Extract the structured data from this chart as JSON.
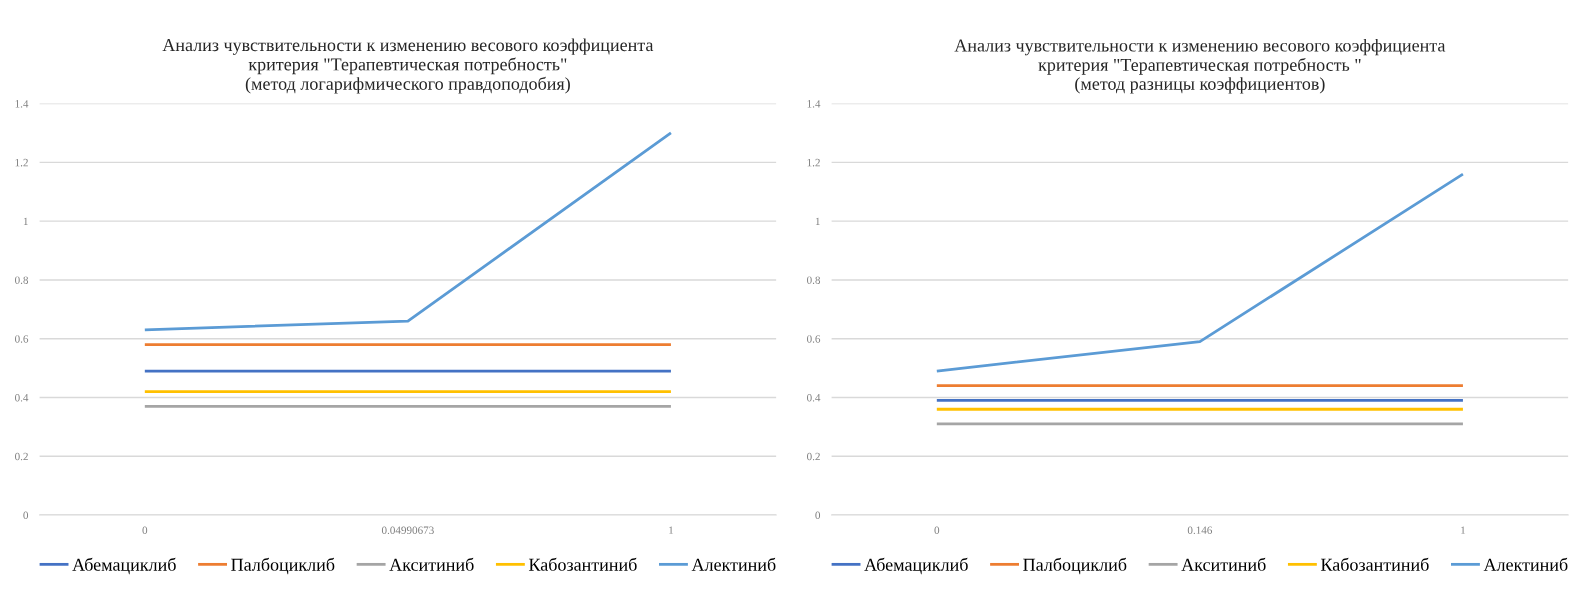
{
  "chart_data": [
    {
      "type": "line",
      "title": "Анализ чувствительности к изменению весового коэффициента\nкритерия \"Терапевтическая потребность\"\n(метод логарифмического правдоподобия)",
      "categories": [
        "0",
        "0.04990673",
        "1"
      ],
      "series": [
        {
          "name": "Абемациклиб",
          "color": "#4472c4",
          "values": [
            0.49,
            0.49,
            0.49
          ]
        },
        {
          "name": "Палбоциклиб",
          "color": "#ed7d31",
          "values": [
            0.58,
            0.58,
            0.58
          ]
        },
        {
          "name": "Акситиниб",
          "color": "#a5a5a5",
          "values": [
            0.37,
            0.37,
            0.37
          ]
        },
        {
          "name": "Кабозантиниб",
          "color": "#ffc000",
          "values": [
            0.42,
            0.42,
            0.42
          ]
        },
        {
          "name": "Алектиниб",
          "color": "#5b9bd5",
          "values": [
            0.63,
            0.66,
            1.3
          ]
        }
      ],
      "ylim": [
        0,
        1.4
      ],
      "yticks": [
        0,
        0.2,
        0.4,
        0.6,
        0.8,
        1,
        1.2,
        1.4
      ],
      "grid": "y",
      "legend": "bottom",
      "marker": "none",
      "line_style": "solid"
    },
    {
      "type": "line",
      "title": "Анализ чувствительности к изменению весового коэффициента\nкритерия \"Терапевтическая потребность \"\n(метод разницы коэффициентов)",
      "categories": [
        "0",
        "0.146",
        "1"
      ],
      "series": [
        {
          "name": "Абемациклиб",
          "color": "#4472c4",
          "values": [
            0.39,
            0.39,
            0.39
          ]
        },
        {
          "name": "Палбоциклиб",
          "color": "#ed7d31",
          "values": [
            0.44,
            0.44,
            0.44
          ]
        },
        {
          "name": "Акситиниб",
          "color": "#a5a5a5",
          "values": [
            0.31,
            0.31,
            0.31
          ]
        },
        {
          "name": "Кабозантиниб",
          "color": "#ffc000",
          "values": [
            0.36,
            0.36,
            0.36
          ]
        },
        {
          "name": "Алектиниб",
          "color": "#5b9bd5",
          "values": [
            0.49,
            0.59,
            1.16
          ]
        }
      ],
      "ylim": [
        0,
        1.4
      ],
      "yticks": [
        0,
        0.2,
        0.4,
        0.6,
        0.8,
        1,
        1.2,
        1.4
      ],
      "grid": "y",
      "legend": "bottom",
      "marker": "none",
      "line_style": "solid"
    }
  ]
}
